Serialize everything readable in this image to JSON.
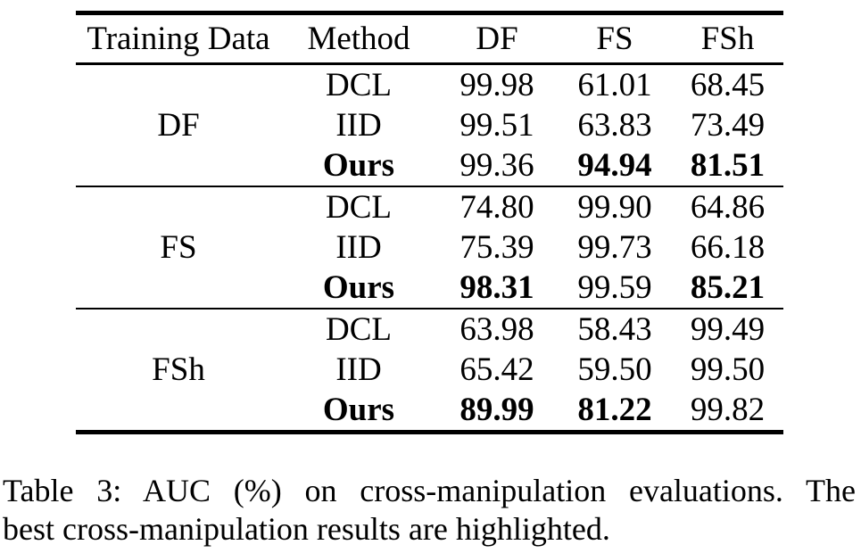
{
  "table": {
    "headers": [
      "Training Data",
      "Method",
      "DF",
      "FS",
      "FSh"
    ],
    "groups": [
      {
        "training_data": "DF",
        "rows": [
          {
            "method": "DCL",
            "method_bold": false,
            "values": [
              "99.98",
              "61.01",
              "68.45"
            ],
            "values_bold": [
              false,
              false,
              false
            ]
          },
          {
            "method": "IID",
            "method_bold": false,
            "values": [
              "99.51",
              "63.83",
              "73.49"
            ],
            "values_bold": [
              false,
              false,
              false
            ]
          },
          {
            "method": "Ours",
            "method_bold": true,
            "values": [
              "99.36",
              "94.94",
              "81.51"
            ],
            "values_bold": [
              false,
              true,
              true
            ]
          }
        ]
      },
      {
        "training_data": "FS",
        "rows": [
          {
            "method": "DCL",
            "method_bold": false,
            "values": [
              "74.80",
              "99.90",
              "64.86"
            ],
            "values_bold": [
              false,
              false,
              false
            ]
          },
          {
            "method": "IID",
            "method_bold": false,
            "values": [
              "75.39",
              "99.73",
              "66.18"
            ],
            "values_bold": [
              false,
              false,
              false
            ]
          },
          {
            "method": "Ours",
            "method_bold": true,
            "values": [
              "98.31",
              "99.59",
              "85.21"
            ],
            "values_bold": [
              true,
              false,
              true
            ]
          }
        ]
      },
      {
        "training_data": "FSh",
        "rows": [
          {
            "method": "DCL",
            "method_bold": false,
            "values": [
              "63.98",
              "58.43",
              "99.49"
            ],
            "values_bold": [
              false,
              false,
              false
            ]
          },
          {
            "method": "IID",
            "method_bold": false,
            "values": [
              "65.42",
              "59.50",
              "99.50"
            ],
            "values_bold": [
              false,
              false,
              false
            ]
          },
          {
            "method": "Ours",
            "method_bold": true,
            "values": [
              "89.99",
              "81.22",
              "99.82"
            ],
            "values_bold": [
              true,
              true,
              false
            ]
          }
        ]
      }
    ]
  },
  "caption": {
    "line1": "Table 3: AUC (%) on cross-manipulation evaluations. The",
    "line2": "best cross-manipulation results are highlighted."
  }
}
